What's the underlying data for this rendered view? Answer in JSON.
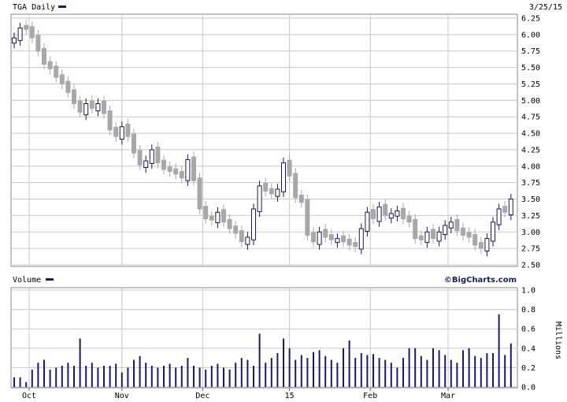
{
  "price_panel": {
    "ticker_label": "TGA Daily",
    "date_label": "3/25/15"
  },
  "volume_panel": {
    "label": "Volume",
    "brand": "©BigCharts.com",
    "unit_label": "Millions"
  },
  "colors": {
    "up_candle": "#1a1a4d",
    "down_candle": "#a8a8a8",
    "volume_bar": "#1a1a66",
    "grid": "#c8c8c8",
    "legend_swatch": "#1a1a66"
  },
  "chart_data": [
    {
      "type": "candlestick",
      "title": "TGA Daily",
      "ylim": [
        2.5,
        6.25
      ],
      "y_ticks": [
        "6.25",
        "6.00",
        "5.75",
        "5.50",
        "5.25",
        "5.00",
        "4.75",
        "4.50",
        "4.25",
        "4.00",
        "3.75",
        "3.50",
        "3.25",
        "3.00",
        "2.75",
        "2.50"
      ],
      "x_ticks": [
        "Oct",
        "Nov",
        "Dec",
        "15",
        "Feb",
        "Mar"
      ],
      "grid": true,
      "series": [
        {
          "close": [
            5.95,
            6.1,
            6.08,
            5.95,
            5.75,
            5.55,
            5.48,
            5.35,
            5.25,
            5.12,
            4.95,
            4.82,
            4.95,
            4.88,
            4.95,
            4.8,
            4.55,
            4.45,
            4.6,
            4.45,
            4.2,
            4.02,
            4.08,
            4.25,
            4.05,
            3.95,
            3.92,
            3.88,
            3.82,
            4.1,
            3.78,
            3.35,
            3.2,
            3.18,
            3.3,
            3.15,
            3.05,
            2.98,
            2.85,
            2.92,
            3.35,
            3.7,
            3.62,
            3.58,
            3.65,
            4.05,
            3.85,
            3.52,
            3.45,
            2.95,
            2.85,
            3.0,
            2.92,
            2.88,
            2.9,
            2.85,
            2.8,
            2.78,
            3.05,
            3.3,
            3.2,
            3.38,
            3.25,
            3.28,
            3.32,
            3.2,
            3.15,
            2.9,
            2.88,
            3.0,
            2.9,
            3.0,
            3.1,
            3.15,
            3.02,
            2.95,
            2.92,
            2.8,
            2.75,
            2.9,
            3.15,
            3.35,
            3.3,
            3.5
          ]
        }
      ]
    },
    {
      "type": "bar",
      "title": "Volume",
      "ylabel": "Millions",
      "ylim": [
        0,
        1.0
      ],
      "y_ticks": [
        "1.0",
        "0.8",
        "0.6",
        "0.4",
        "0.2",
        "0.0"
      ],
      "series": [
        {
          "name": "Volume",
          "values": [
            0.1,
            0.1,
            0.05,
            0.18,
            0.25,
            0.28,
            0.18,
            0.2,
            0.22,
            0.25,
            0.22,
            0.5,
            0.22,
            0.25,
            0.2,
            0.22,
            0.22,
            0.24,
            0.15,
            0.2,
            0.28,
            0.32,
            0.25,
            0.22,
            0.2,
            0.22,
            0.24,
            0.2,
            0.22,
            0.3,
            0.22,
            0.2,
            0.18,
            0.22,
            0.24,
            0.2,
            0.18,
            0.25,
            0.3,
            0.28,
            0.22,
            0.55,
            0.25,
            0.3,
            0.35,
            0.5,
            0.4,
            0.28,
            0.33,
            0.3,
            0.36,
            0.38,
            0.32,
            0.28,
            0.25,
            0.4,
            0.48,
            0.3,
            0.35,
            0.33,
            0.34,
            0.3,
            0.28,
            0.25,
            0.2,
            0.3,
            0.4,
            0.4,
            0.32,
            0.28,
            0.4,
            0.38,
            0.33,
            0.28,
            0.25,
            0.38,
            0.4,
            0.32,
            0.3,
            0.35,
            0.35,
            0.75,
            0.33,
            0.45
          ]
        }
      ]
    }
  ]
}
